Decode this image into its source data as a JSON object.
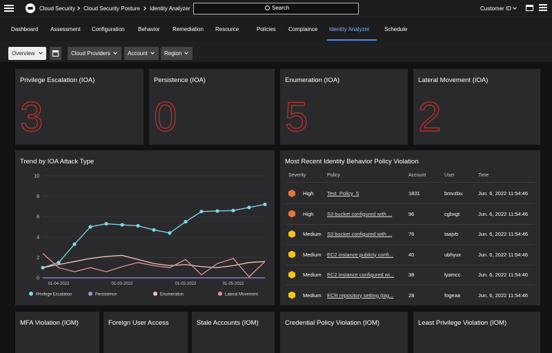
{
  "header": {
    "breadcrumb": [
      "Cloud Security",
      "Cloud Security Posture",
      "Identity Analyzer"
    ],
    "search": "Search",
    "account": "Customer ID"
  },
  "nav": {
    "tabs": [
      "Dashboard",
      "Assessment",
      "Configuration",
      "Behavior",
      "Remediation",
      "Resource",
      "Policies",
      "Complaince",
      "Identity Analyzer",
      "Schedule"
    ],
    "active": "Identity Analyzer"
  },
  "filters": {
    "view": "Overview",
    "dropdowns": [
      "Cloud Providers",
      "Account",
      "Region"
    ]
  },
  "metrics": [
    {
      "title": "Privilege Escalation (IOA)",
      "value": 3
    },
    {
      "title": "Persistence (IOA)",
      "value": 0
    },
    {
      "title": "Enumeration (IOA)",
      "value": 5
    },
    {
      "title": "Lateral Movement (IOA)",
      "value": 2
    }
  ],
  "chart_data": {
    "type": "line",
    "title": "Trend by IOA Attack Type",
    "categories": [
      null,
      "01-04-2022",
      null,
      null,
      null,
      "01-03-2022",
      null,
      null,
      null,
      "01-02-2022",
      null,
      null,
      "01-05-2022",
      null,
      null
    ],
    "ylim": [
      0,
      10
    ],
    "yticks": [
      0,
      2,
      4,
      6,
      8,
      10
    ],
    "grid": true,
    "legend": "bottom",
    "series": [
      {
        "name": "Privilege Escalation",
        "color": "#7fd8e8",
        "marker": true,
        "values": [
          1.0,
          1.5,
          3.3,
          5.0,
          5.3,
          5.2,
          5.1,
          4.7,
          4.4,
          5.5,
          6.5,
          6.55,
          6.6,
          6.9,
          7.2
        ]
      },
      {
        "name": "Persistence",
        "color": "#a98bf0",
        "marker": false,
        "values": [
          0,
          0,
          0,
          0,
          0,
          0,
          0,
          0,
          0,
          0,
          0,
          0,
          0,
          0,
          0
        ]
      },
      {
        "name": "Enumeration",
        "color": "#f2c6bd",
        "marker": false,
        "values": [
          1.0,
          1.3,
          1.6,
          1.9,
          2.1,
          2.2,
          1.8,
          1.4,
          1.2,
          1.3,
          1.1,
          1.0,
          1.2,
          1.5,
          1.6
        ]
      },
      {
        "name": "Lateral Movement",
        "color": "#e8909f",
        "marker": false,
        "values": [
          2.4,
          1.0,
          0.6,
          1.0,
          0.6,
          1.1,
          1.5,
          1.2,
          1.0,
          1.8,
          0.3,
          1.4,
          1.9,
          0.1,
          1.6
        ]
      }
    ]
  },
  "table": {
    "title": "Most Recent Identity Behavior Policy Violation",
    "columns": [
      "Severity",
      "Policy",
      "Account",
      "User",
      "Time"
    ],
    "severity_colors": {
      "High": "#e8743b",
      "Medium": "#f5c518"
    },
    "rows": [
      [
        "High",
        "Test_Policy_5",
        1831,
        "bmvzbu",
        "Jun. 6, 2022 11:54:46"
      ],
      [
        "High",
        "S3 bucket configured with ...",
        96,
        "cgbxgt",
        "Jun. 6, 2022 11:54:46"
      ],
      [
        "Medium",
        "S3 bucket configured with ...",
        76,
        "taajvb",
        "Jun. 6, 2022 11:54:46"
      ],
      [
        "Medium",
        "EC2 instance publicly confi...",
        40,
        "ubhyux",
        "Jun. 6, 2022 11:54:46"
      ],
      [
        "Medium",
        "EC2 instance configured wi...",
        38,
        "lyamcc",
        "Jun. 6, 2022 11:54:46"
      ],
      [
        "Medium",
        "ECR repository setting (tag...",
        28,
        "fogeaa",
        "Jun. 6, 2022 11:54:46"
      ]
    ]
  },
  "bottom_cards": [
    "MFA Violation (IOM)",
    "Foreign User Access",
    "Stale Accounts (IOM)",
    "Credential Policy Violation (IOM)",
    "Least Privilege Violation (IOM)"
  ]
}
